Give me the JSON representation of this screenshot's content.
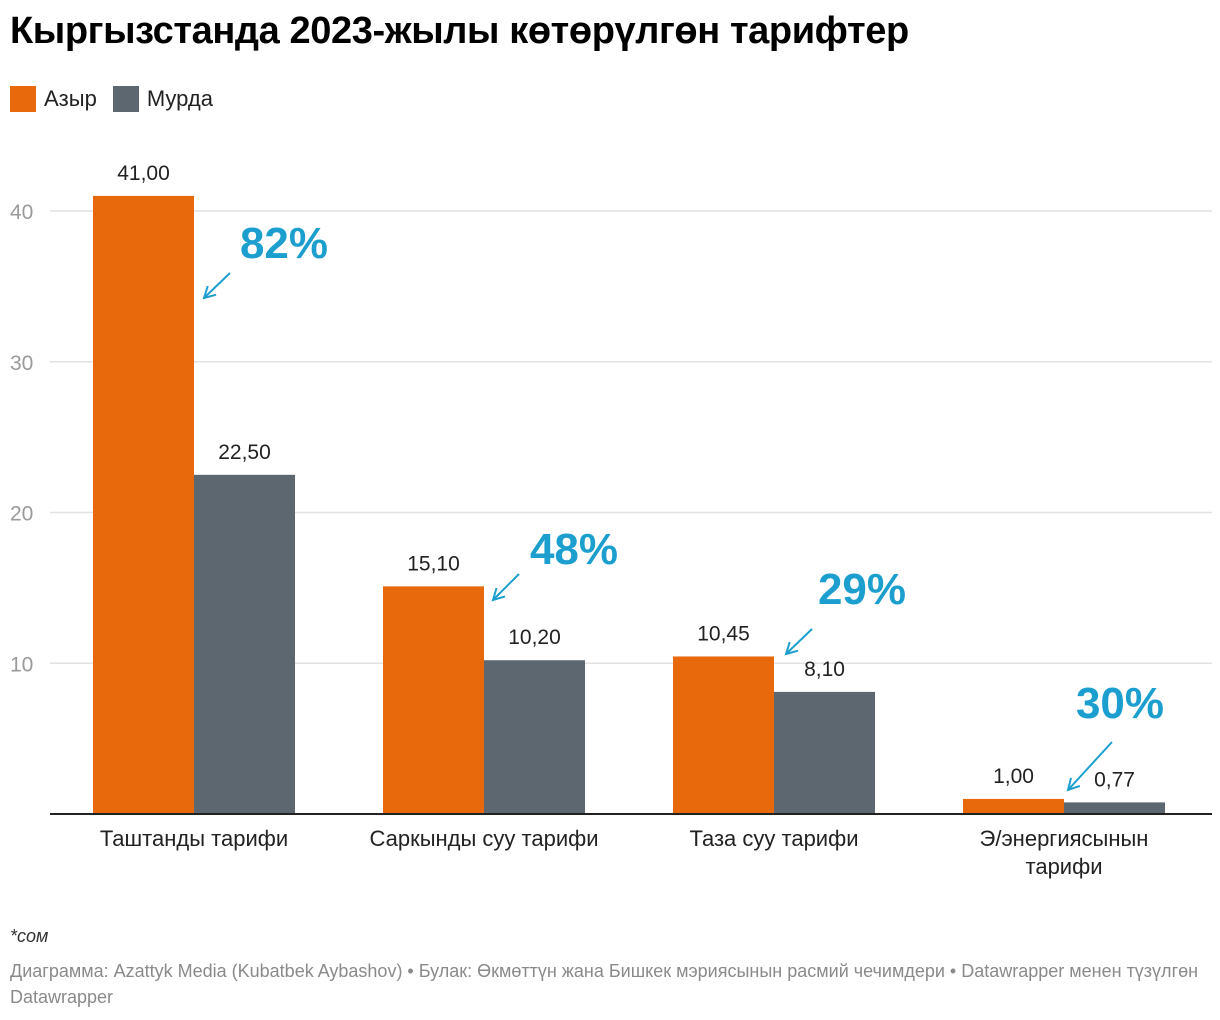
{
  "header": {
    "title": "Кыргызстанда 2023-жылы көтөрүлгөн тарифтер"
  },
  "legend": [
    {
      "label": "Азыр",
      "color": "#E8690B"
    },
    {
      "label": "Мурда",
      "color": "#5C6770"
    }
  ],
  "chart_data": {
    "type": "bar",
    "title": "Кыргызстанда 2023-жылы көтөрүлгөн тарифтер",
    "xlabel": "",
    "ylabel": "",
    "ylim": [
      0,
      40
    ],
    "yticks": [
      "10",
      "20",
      "30",
      "40"
    ],
    "grid": true,
    "legend_position": "top-left",
    "categories": [
      [
        "Таштанды тарифи"
      ],
      [
        "Саркынды суу тарифи"
      ],
      [
        "Таза суу тарифи"
      ],
      [
        "Э/энергиясынын",
        "тарифи"
      ]
    ],
    "series": [
      {
        "name": "Азыр",
        "color": "#E8690B",
        "values": [
          41.0,
          15.1,
          10.45,
          1.0
        ],
        "labels": [
          "41,00",
          "15,10",
          "10,45",
          "1,00"
        ]
      },
      {
        "name": "Мурда",
        "color": "#5C6770",
        "values": [
          22.5,
          10.2,
          8.1,
          0.77
        ],
        "labels": [
          "22,50",
          "10,20",
          "8,10",
          "0,77"
        ]
      }
    ],
    "annotations": [
      {
        "text": "82%",
        "category": 0,
        "color": "#1C9FCF"
      },
      {
        "text": "48%",
        "category": 1,
        "color": "#1C9FCF"
      },
      {
        "text": "29%",
        "category": 2,
        "color": "#1C9FCF"
      },
      {
        "text": "30%",
        "category": 3,
        "color": "#1C9FCF"
      }
    ]
  },
  "footer": {
    "note": "*сом",
    "source": "Диаграмма: Azattyk Media (Kubatbek Aybashov) • Булак: Өкмөттүн жана Бишкек мэриясынын расмий чечимдери • Datawrapper менен түзүлгөн Datawrapper"
  }
}
